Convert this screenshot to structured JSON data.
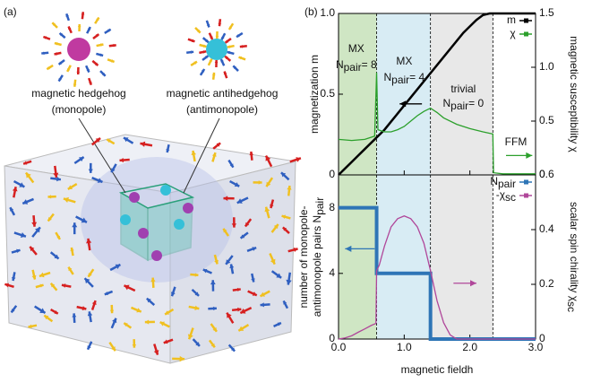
{
  "panel_labels": [
    "(a)",
    "(b)"
  ],
  "panel_a": {
    "labels": [
      [
        "magnetic hedgehog",
        "(monopole)"
      ],
      [
        "magnetic antihedgehog",
        "(antimonopole)"
      ]
    ]
  },
  "chart_data": [
    {
      "type": "line",
      "x_ticks_labeled": false,
      "xlim": [
        0,
        3
      ],
      "xticks": [
        {
          "value": 0,
          "label": "0.0"
        },
        {
          "value": 1,
          "label": "1.0"
        },
        {
          "value": 2,
          "label": "2.0"
        },
        {
          "value": 3,
          "label": "3.0"
        }
      ],
      "y_label": "magnetization m",
      "ylim": [
        0,
        1
      ],
      "yticks": [
        0,
        0.5,
        {
          "value": 1,
          "label": "1.0"
        }
      ],
      "y2_label": "magnetic susceptibility χ",
      "y2lim": [
        0,
        1.5
      ],
      "y2ticks": [
        0,
        0.5,
        {
          "value": 1,
          "label": "1.0"
        },
        1.5
      ],
      "regions": [
        {
          "from": 0,
          "to": 0.58,
          "color": "#cfe6c4"
        },
        {
          "from": 0.58,
          "to": 1.4,
          "color": "#d8ecf4"
        },
        {
          "from": 1.4,
          "to": 2.35,
          "color": "#e8e8e8"
        }
      ],
      "annotations": [
        {
          "text": "MX"
        },
        {
          "text": "N",
          "sub": "pair",
          "tail": " = 8"
        },
        {
          "text": "MX"
        },
        {
          "text": "N",
          "sub": "pair",
          "tail": " = 4"
        },
        {
          "text": "trivial"
        },
        {
          "text": "N",
          "sub": "pair",
          "tail": " = 0"
        },
        {
          "text": "FFM"
        }
      ],
      "series": [
        {
          "name": "m",
          "color": "#000000",
          "x": [
            0,
            0.1,
            0.2,
            0.3,
            0.4,
            0.5,
            0.6,
            0.7,
            0.8,
            0.9,
            1.0,
            1.1,
            1.2,
            1.3,
            1.4,
            1.5,
            1.6,
            1.7,
            1.8,
            1.9,
            2.0,
            2.1,
            2.2,
            2.3,
            2.4,
            2.5,
            2.6,
            2.7,
            2.8,
            2.9,
            3.0
          ],
          "values": [
            0,
            0.04,
            0.08,
            0.12,
            0.16,
            0.2,
            0.24,
            0.28,
            0.33,
            0.38,
            0.43,
            0.48,
            0.53,
            0.58,
            0.63,
            0.68,
            0.73,
            0.78,
            0.83,
            0.88,
            0.92,
            0.96,
            0.99,
            1.0,
            1.0,
            1.0,
            1.0,
            1.0,
            1.0,
            1.0,
            1.0
          ]
        },
        {
          "name": "χ",
          "color": "#2ca02c",
          "axis": "y2",
          "x": [
            0,
            0.2,
            0.4,
            0.55,
            0.58,
            0.6,
            0.7,
            0.8,
            0.9,
            1.0,
            1.1,
            1.2,
            1.3,
            1.4,
            1.5,
            1.6,
            1.8,
            2.0,
            2.2,
            2.35,
            2.36,
            2.5,
            3.0
          ],
          "values": [
            0.33,
            0.32,
            0.33,
            0.36,
            0.95,
            0.42,
            0.4,
            0.4,
            0.42,
            0.45,
            0.5,
            0.55,
            0.59,
            0.62,
            0.58,
            0.53,
            0.47,
            0.43,
            0.4,
            0.38,
            0.02,
            0.01,
            0.01
          ]
        }
      ]
    },
    {
      "type": "line",
      "x_ticks_labeled": true,
      "x_label": "magnetic field",
      "x_label_var": "h",
      "xlim": [
        0,
        3
      ],
      "xticks": [
        {
          "value": 0,
          "label": "0.0"
        },
        {
          "value": 1,
          "label": "1.0"
        },
        {
          "value": 2,
          "label": "2.0"
        },
        {
          "value": 3,
          "label": "3.0"
        }
      ],
      "y_label": [
        "number of monopole-",
        "antimonopole pairs N"
      ],
      "y_label_sub": "pair",
      "ylim": [
        0,
        10
      ],
      "yticks": [
        0,
        4,
        8
      ],
      "y2_label": "scalar spin chirality χ",
      "y2_label_sub": "sc",
      "y2lim": [
        0,
        0.6
      ],
      "y2ticks": [
        0,
        0.2,
        0.4,
        0.6
      ],
      "regions": [
        {
          "from": 0,
          "to": 0.58,
          "color": "#cfe6c4"
        },
        {
          "from": 0.58,
          "to": 1.4,
          "color": "#d8ecf4"
        },
        {
          "from": 1.4,
          "to": 2.35,
          "color": "#e8e8e8"
        }
      ],
      "series": [
        {
          "name": "N",
          "name_sub": "pair",
          "color": "#2e75b6",
          "x": [
            0,
            0.58,
            0.58,
            1.4,
            1.4,
            3.0
          ],
          "values": [
            8,
            8,
            4,
            4,
            0,
            0
          ]
        },
        {
          "name": "-χ",
          "name_sub": "sc",
          "color": "#b0479a",
          "axis": "y2",
          "x": [
            0,
            0.1,
            0.2,
            0.3,
            0.4,
            0.5,
            0.57,
            0.58,
            0.62,
            0.7,
            0.8,
            0.9,
            1.0,
            1.1,
            1.2,
            1.3,
            1.4,
            1.5,
            1.6,
            1.7,
            1.8,
            2.0,
            2.5,
            3.0
          ],
          "values": [
            0,
            0.004,
            0.012,
            0.025,
            0.037,
            0.05,
            0.057,
            0.25,
            0.27,
            0.34,
            0.41,
            0.44,
            0.45,
            0.44,
            0.41,
            0.35,
            0.25,
            0.14,
            0.06,
            0.015,
            0,
            0,
            0,
            0
          ]
        }
      ]
    }
  ]
}
